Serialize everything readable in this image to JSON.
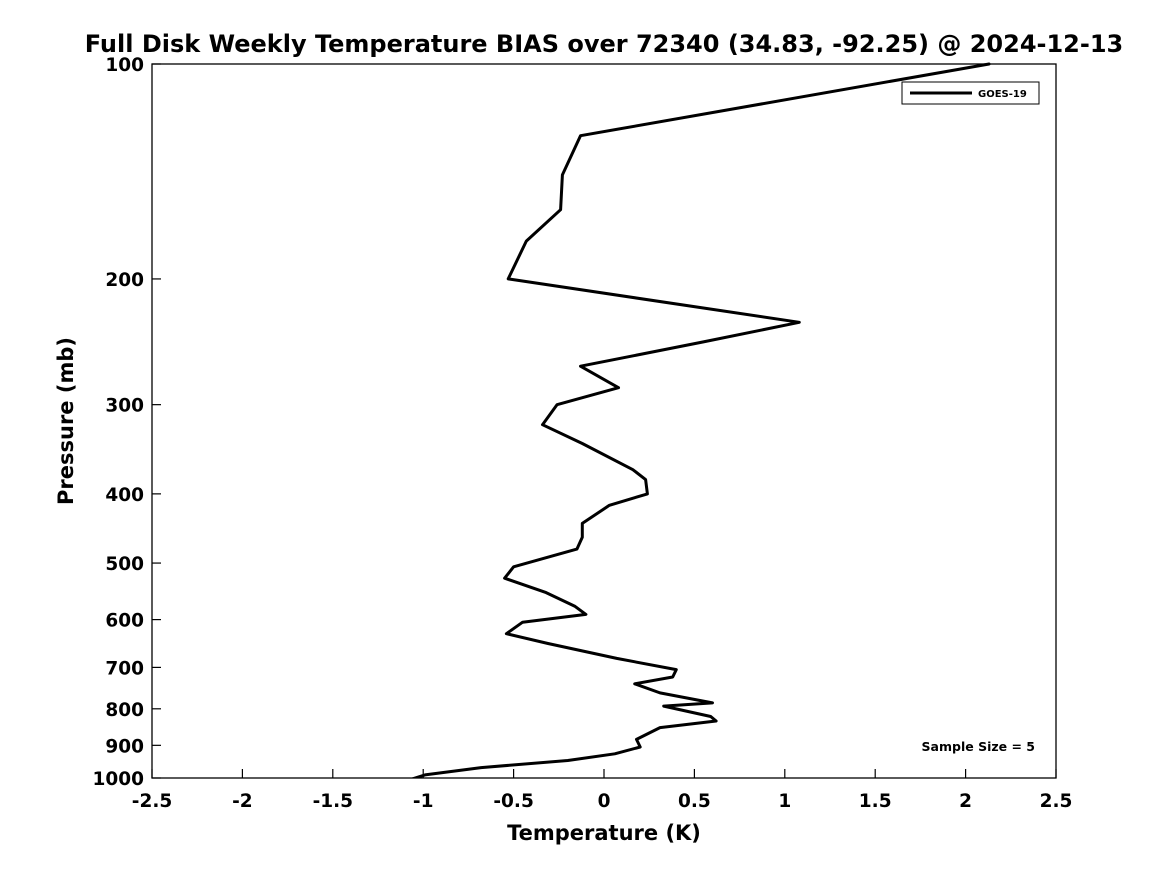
{
  "chart_data": {
    "type": "line",
    "title": "Full Disk Weekly Temperature BIAS over 72340 (34.83, -92.25) @ 2024-12-13",
    "xlabel": "Temperature (K)",
    "ylabel": "Pressure (mb)",
    "xlim": [
      -2.5,
      2.5
    ],
    "ylim": [
      1000,
      100
    ],
    "yscale": "log",
    "y_reversed": true,
    "x_ticks": [
      "-2.5",
      "-2",
      "-1.5",
      "-1",
      "-0.5",
      "0",
      "0.5",
      "1",
      "1.5",
      "2",
      "2.5"
    ],
    "x_tick_values": [
      -2.5,
      -2,
      -1.5,
      -1,
      -0.5,
      0,
      0.5,
      1,
      1.5,
      2,
      2.5
    ],
    "y_ticks": [
      "100",
      "200",
      "300",
      "400",
      "500",
      "600",
      "700",
      "800",
      "900",
      "1000"
    ],
    "y_tick_values": [
      100,
      200,
      300,
      400,
      500,
      600,
      700,
      800,
      900,
      1000
    ],
    "grid": false,
    "legend_position": "top-right",
    "annotation": "Sample Size = 5",
    "series": [
      {
        "name": "GOES-19",
        "color": "#000000",
        "x": [
          2.13,
          -0.13,
          -0.23,
          -0.24,
          -0.43,
          -0.53,
          1.08,
          0.55,
          -0.13,
          0.08,
          -0.26,
          -0.34,
          -0.12,
          0.16,
          0.23,
          0.24,
          0.03,
          -0.12,
          -0.12,
          -0.15,
          -0.5,
          -0.55,
          -0.32,
          -0.16,
          -0.1,
          -0.45,
          -0.54,
          -0.31,
          0.07,
          0.4,
          0.38,
          0.17,
          0.31,
          0.6,
          0.33,
          0.59,
          0.62,
          0.31,
          0.18,
          0.2,
          0.06,
          -0.2,
          -0.68,
          -0.99,
          -1.07
        ],
        "y": [
          100,
          126,
          143,
          160,
          177,
          200,
          230,
          245,
          265,
          284,
          300,
          320,
          340,
          370,
          382,
          400,
          415,
          440,
          460,
          478,
          506,
          525,
          550,
          575,
          590,
          605,
          628,
          648,
          680,
          705,
          722,
          738,
          760,
          785,
          793,
          820,
          832,
          850,
          883,
          905,
          925,
          945,
          967,
          990,
          1005
        ]
      }
    ]
  }
}
